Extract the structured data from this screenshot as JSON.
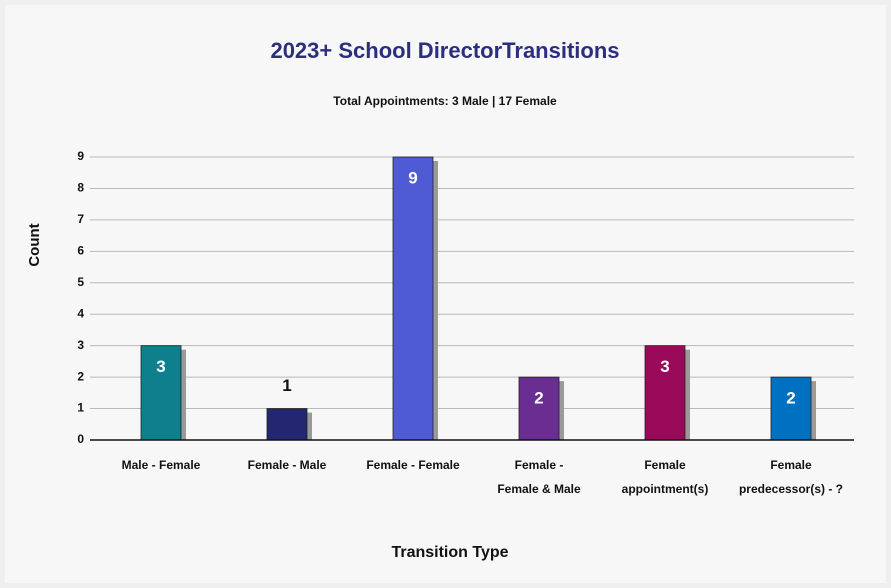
{
  "chart_data": {
    "type": "bar",
    "title": "2023+ School DirectorTransitions",
    "subtitle": "Total Appointments: 3 Male  |  17 Female",
    "x_label": "Transition Type",
    "y_label": "Count",
    "categories": [
      [
        "Male - Female"
      ],
      [
        "Female - Male"
      ],
      [
        "Female - Female"
      ],
      [
        "Female -",
        "Female & Male"
      ],
      [
        "Female",
        "appointment(s)"
      ],
      [
        "Female",
        "predecessor(s) - ?"
      ]
    ],
    "values": [
      3,
      1,
      9,
      2,
      3,
      2
    ],
    "colors": [
      "#0e7f8c",
      "#232770",
      "#4f5bd5",
      "#6a2d91",
      "#9b0a5a",
      "#0070c0"
    ],
    "ylim": [
      0,
      9
    ],
    "yticks": [
      0,
      1,
      2,
      3,
      4,
      5,
      6,
      7,
      8,
      9
    ],
    "grid": true
  }
}
